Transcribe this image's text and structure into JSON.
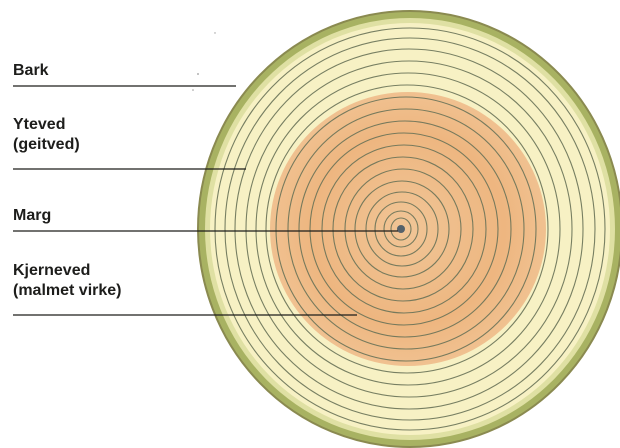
{
  "labels": {
    "bark": "Bark",
    "yteved_line1": "Yteved",
    "yteved_line2": "(geitved)",
    "marg": "Marg",
    "kjerneved_line1": "Kjerneved",
    "kjerneved_line2": "(malmet virke)"
  },
  "colors": {
    "bark": "#a5b060",
    "sapwood": "#f7f1c4",
    "heartwood": "#eeb680",
    "ring_line": "#6a7358",
    "leader_line": "#1d1d1b",
    "pith": "#55616a"
  }
}
